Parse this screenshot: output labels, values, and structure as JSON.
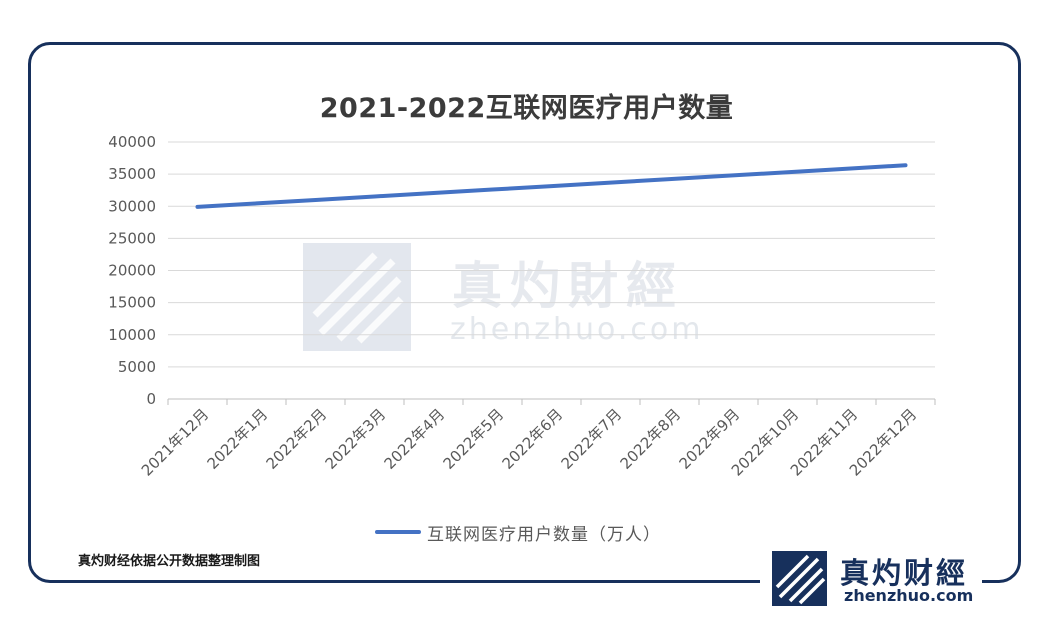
{
  "chart_data": {
    "type": "line",
    "title": "2021-2022互联网医疗用户数量",
    "categories": [
      "2021年12月",
      "2022年1月",
      "2022年2月",
      "2022年3月",
      "2022年4月",
      "2022年5月",
      "2022年6月",
      "2022年7月",
      "2022年8月",
      "2022年9月",
      "2022年10月",
      "2022年11月",
      "2022年12月"
    ],
    "series": [
      {
        "name": "互联网医疗用户数量（万人）",
        "color": "#4472c4",
        "values": [
          29900,
          30440,
          30980,
          31520,
          32060,
          32600,
          33140,
          33680,
          34220,
          34760,
          35300,
          35840,
          36380
        ]
      }
    ],
    "ylim": [
      0,
      40000
    ],
    "y_ticks": [
      "40000",
      "35000",
      "30000",
      "25000",
      "20000",
      "15000",
      "10000",
      "5000",
      "0"
    ],
    "grid": true,
    "legend_position": "bottom",
    "xlabel": "",
    "ylabel": ""
  },
  "source_note": "真灼财经依据公开数据整理制图",
  "logo": {
    "name_cn": "真灼财經",
    "name_en": "zhenzhuo.com"
  },
  "watermark": {
    "name_cn": "真灼財經",
    "name_en": "zhenzhuo.com"
  },
  "colors": {
    "frame": "#17305c",
    "series": "#4472c4",
    "grid": "#d9d9d9"
  }
}
